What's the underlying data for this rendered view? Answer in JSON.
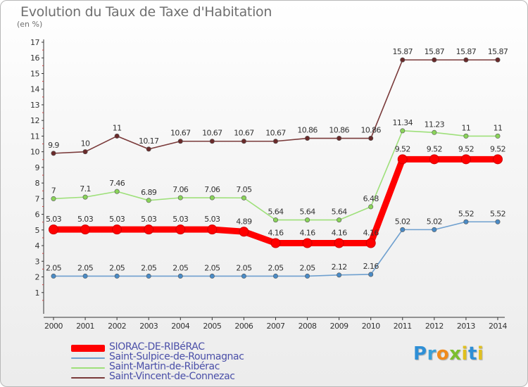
{
  "title": "Evolution du Taux de Taxe d'Habitation",
  "unit_label": "(en %)",
  "logo": {
    "text": "Proxiti",
    "letters": [
      {
        "ch": "P",
        "color": "#2e8fd6"
      },
      {
        "ch": "r",
        "color": "#3aa0d8"
      },
      {
        "ch": "o",
        "color": "#f08a1c"
      },
      {
        "ch": "x",
        "color": "#7cbf2e"
      },
      {
        "ch": "i",
        "color": "#e0c020"
      },
      {
        "ch": "t",
        "color": "#2e8fd6"
      },
      {
        "ch": "i",
        "color": "#e0c020"
      }
    ]
  },
  "chart_data": {
    "type": "line",
    "title": "Evolution du Taux de Taxe d'Habitation",
    "ylabel": "(en %)",
    "xlabel": "",
    "ylim": [
      0,
      17
    ],
    "yticks": [
      1,
      2,
      3,
      4,
      5,
      6,
      7,
      8,
      9,
      10,
      11,
      12,
      13,
      14,
      15,
      16,
      17
    ],
    "grid": false,
    "legend_position": "bottom-left",
    "categories": [
      "2000",
      "2001",
      "2002",
      "2003",
      "2004",
      "2005",
      "2006",
      "2007",
      "2008",
      "2009",
      "2010",
      "2011",
      "2012",
      "2013",
      "2014"
    ],
    "series": [
      {
        "name": "SIORAC-DE-RIBéRAC",
        "color": "#ff0000",
        "marker_color": "#ff0000",
        "emphasis": true,
        "values": [
          5.03,
          5.03,
          5.03,
          5.03,
          5.03,
          5.03,
          4.89,
          4.16,
          4.16,
          4.16,
          4.16,
          9.52,
          9.52,
          9.52,
          9.52
        ],
        "labels": [
          "5.03",
          "5.03",
          "5.03",
          "5.03",
          "5.03",
          "5.03",
          "4.89",
          "4.16",
          "4.16",
          "4.16",
          "4.16",
          "9.52",
          "9.52",
          "9.52",
          "9.52"
        ]
      },
      {
        "name": "Saint-Sulpice-de-Roumagnac",
        "color": "#6fa0cf",
        "marker_color": "#4a8bc6",
        "emphasis": false,
        "values": [
          2.05,
          2.05,
          2.05,
          2.05,
          2.05,
          2.05,
          2.05,
          2.05,
          2.05,
          2.12,
          2.16,
          5.02,
          5.02,
          5.52,
          5.52
        ],
        "labels": [
          "2.05",
          "2.05",
          "2.05",
          "2.05",
          "2.05",
          "2.05",
          "2.05",
          "2.05",
          "2.05",
          "2.12",
          "2.16",
          "5.02",
          "5.02",
          "5.52",
          "5.52"
        ]
      },
      {
        "name": "Saint-Martin-de-Ribérac",
        "color": "#9ee07a",
        "marker_color": "#8ad45a",
        "emphasis": false,
        "values": [
          7,
          7.1,
          7.46,
          6.89,
          7.06,
          7.06,
          7.05,
          5.64,
          5.64,
          5.64,
          6.48,
          11.34,
          11.23,
          11,
          11
        ],
        "labels": [
          "7",
          "7.1",
          "7.46",
          "6.89",
          "7.06",
          "7.06",
          "7.05",
          "5.64",
          "5.64",
          "5.64",
          "6.48",
          "11.34",
          "11.23",
          "11",
          "11"
        ]
      },
      {
        "name": "Saint-Vincent-de-Connezac",
        "color": "#7a3a3a",
        "marker_color": "#6a2a2a",
        "emphasis": false,
        "values": [
          9.9,
          10,
          11,
          10.17,
          10.67,
          10.67,
          10.67,
          10.67,
          10.86,
          10.86,
          10.86,
          15.87,
          15.87,
          15.87,
          15.87
        ],
        "labels": [
          "9.9",
          "10",
          "11",
          "10.17",
          "10.67",
          "10.67",
          "10.67",
          "10.67",
          "10.86",
          "10.86",
          "10.86",
          "15.87",
          "15.87",
          "15.87",
          "15.87"
        ]
      }
    ]
  }
}
